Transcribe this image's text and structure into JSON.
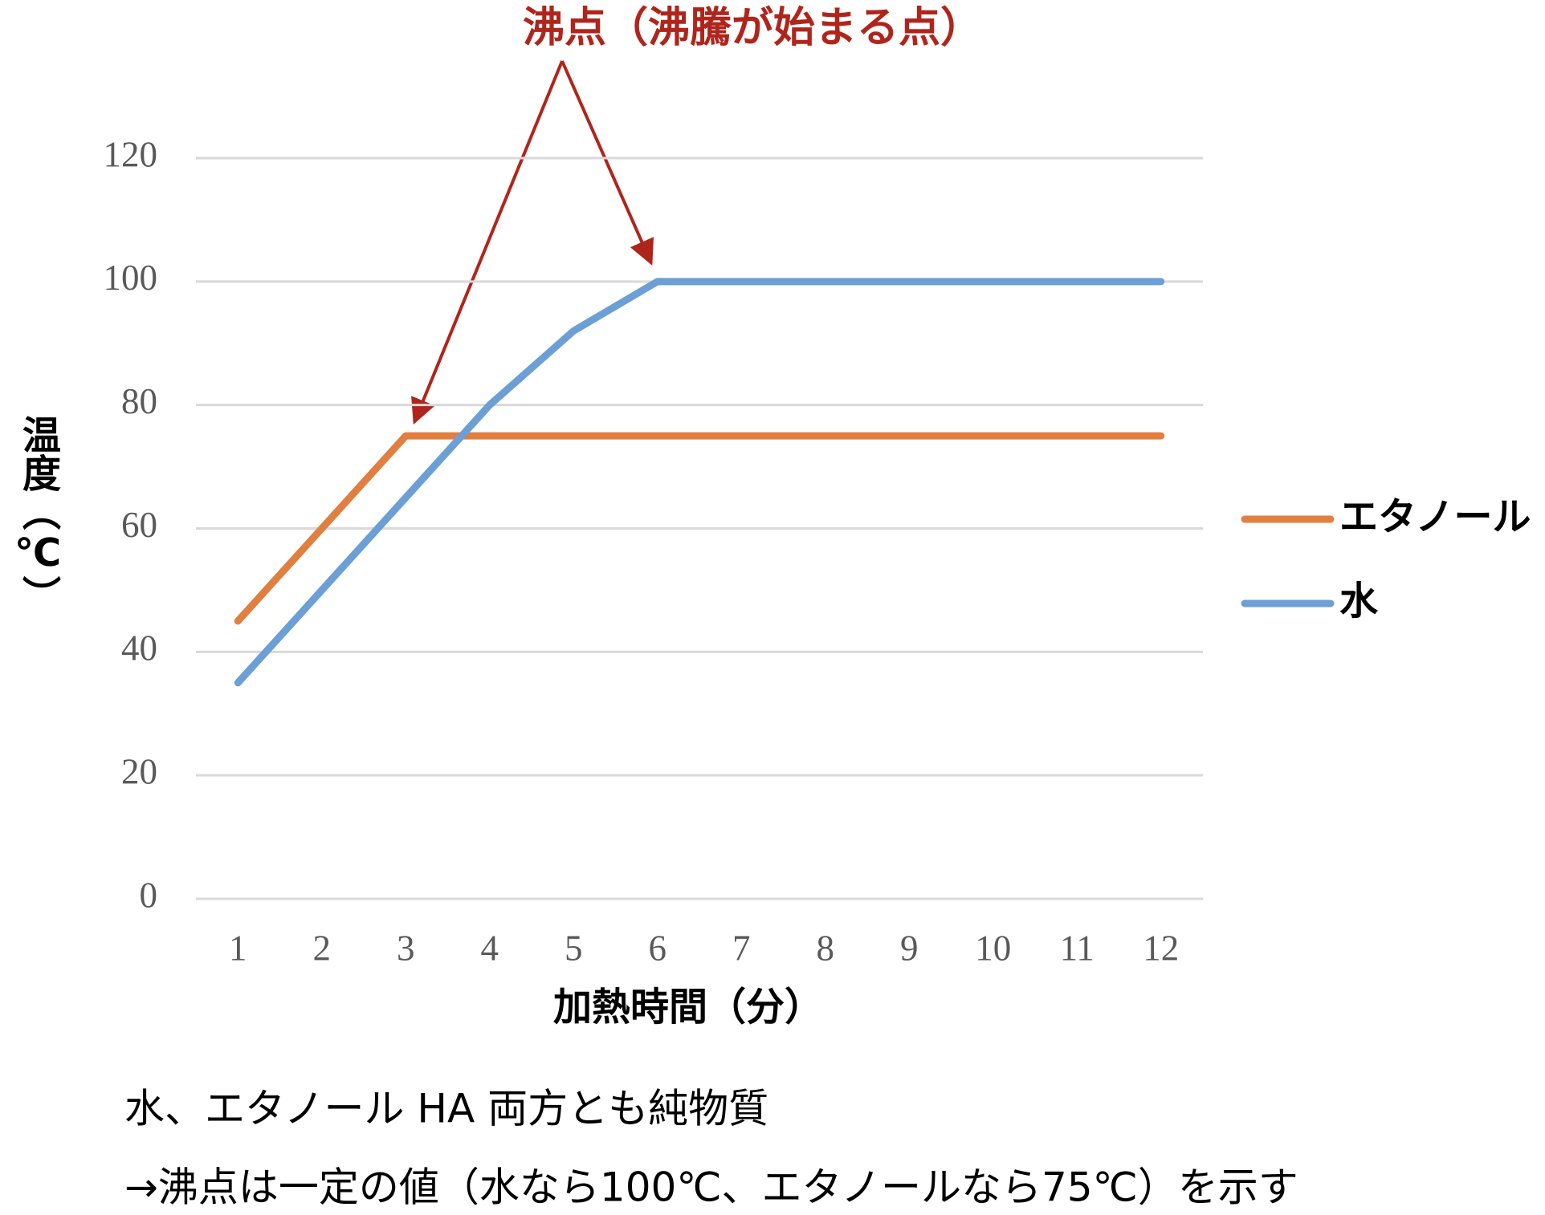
{
  "chart_data": {
    "type": "line",
    "title": "沸点（沸騰が始まる点）",
    "xlabel": "加熱時間（分）",
    "ylabel": "温度（℃）",
    "categories": [
      "1",
      "2",
      "3",
      "4",
      "5",
      "6",
      "7",
      "8",
      "9",
      "10",
      "11",
      "12"
    ],
    "series": [
      {
        "name": "エタノール",
        "color": "#e07f3f",
        "values": [
          45,
          60,
          75,
          75,
          75,
          75,
          75,
          75,
          75,
          75,
          75,
          75
        ]
      },
      {
        "name": "水",
        "color": "#6b9fd6",
        "values": [
          35,
          50,
          65,
          80,
          92,
          100,
          100,
          100,
          100,
          100,
          100,
          100
        ]
      }
    ],
    "ylim": [
      0,
      120
    ],
    "yticks": [
      0,
      20,
      40,
      60,
      80,
      100,
      120
    ],
    "grid": true,
    "legend": "right"
  },
  "notes": [
    "水、エタノール HA 両方とも純物質",
    "→沸点は一定の値（水なら100℃、エタノールなら75℃）を示す"
  ]
}
